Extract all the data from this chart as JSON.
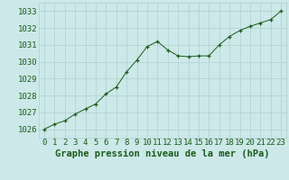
{
  "x": [
    0,
    1,
    2,
    3,
    4,
    5,
    6,
    7,
    8,
    9,
    10,
    11,
    12,
    13,
    14,
    15,
    16,
    17,
    18,
    19,
    20,
    21,
    22,
    23
  ],
  "y": [
    1026.0,
    1026.3,
    1026.5,
    1026.9,
    1027.2,
    1027.5,
    1028.1,
    1028.5,
    1029.4,
    1030.1,
    1030.9,
    1031.2,
    1030.7,
    1030.35,
    1030.3,
    1030.35,
    1030.35,
    1031.0,
    1031.5,
    1031.85,
    1032.1,
    1032.3,
    1032.5,
    1033.0
  ],
  "ylim": [
    1025.5,
    1033.5
  ],
  "yticks": [
    1026,
    1027,
    1028,
    1029,
    1030,
    1031,
    1032,
    1033
  ],
  "xticks": [
    0,
    1,
    2,
    3,
    4,
    5,
    6,
    7,
    8,
    9,
    10,
    11,
    12,
    13,
    14,
    15,
    16,
    17,
    18,
    19,
    20,
    21,
    22,
    23
  ],
  "xlabel": "Graphe pression niveau de la mer (hPa)",
  "line_color": "#1a5c1a",
  "marker": "+",
  "marker_color": "#1a5c1a",
  "bg_color": "#cce8e8",
  "grid_color": "#b0d0d0",
  "tick_label_color": "#1a5c1a",
  "xlabel_color": "#1a5c1a",
  "xlabel_fontsize": 7.5,
  "tick_fontsize": 6.5,
  "bottom_bar_color": "#cce8e8"
}
